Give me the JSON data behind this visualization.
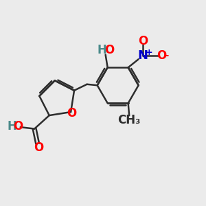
{
  "bg_color": "#ebebeb",
  "bond_color": "#2d2d2d",
  "bond_width": 1.8,
  "colors": {
    "O": "#ff0000",
    "N": "#0000cc",
    "H": "#4a8a8a",
    "C": "#2d2d2d"
  },
  "font_size_atom": 12,
  "font_size_charge": 9
}
